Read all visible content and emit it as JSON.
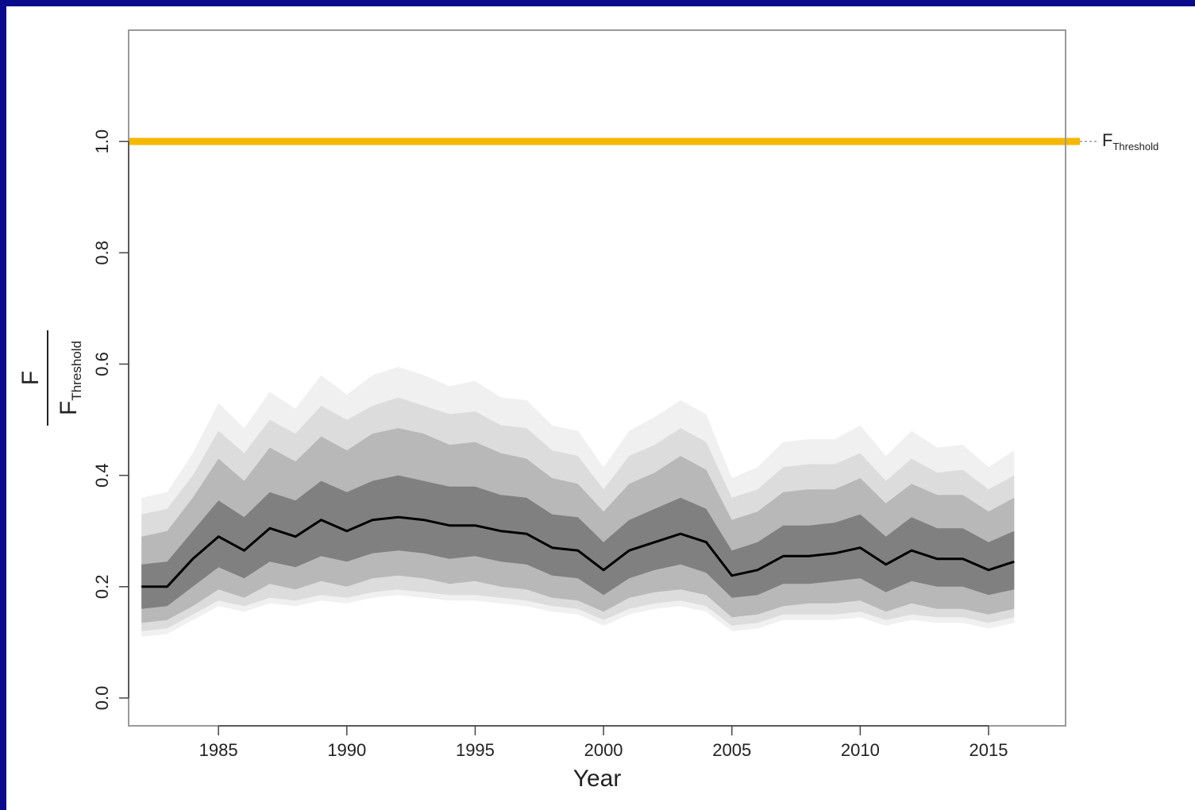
{
  "chart_data": {
    "type": "area",
    "xlabel": "Year",
    "ylabel": {
      "numerator": "F",
      "denominator_main": "F",
      "denominator_sub": "Threshold"
    },
    "xlim": [
      1981.5,
      2018
    ],
    "ylim": [
      -0.05,
      1.2
    ],
    "x_ticks": [
      1985,
      1990,
      1995,
      2000,
      2005,
      2010,
      2015
    ],
    "y_ticks": [
      0.0,
      0.2,
      0.4,
      0.6,
      0.8,
      1.0
    ],
    "y_tick_labels": [
      "0.0",
      "0.2",
      "0.4",
      "0.6",
      "0.8",
      "1.0"
    ],
    "reference_line": {
      "y": 1.0,
      "color": "#f5b800",
      "label_main": "F",
      "label_sub": "Threshold"
    },
    "x": [
      1982,
      1983,
      1984,
      1985,
      1986,
      1987,
      1988,
      1989,
      1990,
      1991,
      1992,
      1993,
      1994,
      1995,
      1996,
      1997,
      1998,
      1999,
      2000,
      2001,
      2002,
      2003,
      2004,
      2005,
      2006,
      2007,
      2008,
      2009,
      2010,
      2011,
      2012,
      2013,
      2014,
      2015,
      2016
    ],
    "series": [
      {
        "role": "median",
        "color": "#000000",
        "values": [
          0.2,
          0.2,
          0.25,
          0.29,
          0.265,
          0.305,
          0.29,
          0.32,
          0.3,
          0.32,
          0.325,
          0.32,
          0.31,
          0.31,
          0.3,
          0.295,
          0.27,
          0.265,
          0.23,
          0.265,
          0.28,
          0.295,
          0.28,
          0.22,
          0.23,
          0.255,
          0.255,
          0.26,
          0.27,
          0.24,
          0.265,
          0.25,
          0.25,
          0.23,
          0.245
        ]
      }
    ],
    "bands": [
      {
        "level": "outer",
        "color": "#f0f0f0",
        "lower": [
          0.11,
          0.115,
          0.14,
          0.165,
          0.155,
          0.17,
          0.165,
          0.175,
          0.17,
          0.18,
          0.185,
          0.18,
          0.175,
          0.175,
          0.17,
          0.165,
          0.155,
          0.15,
          0.13,
          0.15,
          0.16,
          0.165,
          0.155,
          0.12,
          0.125,
          0.14,
          0.14,
          0.14,
          0.145,
          0.13,
          0.14,
          0.135,
          0.135,
          0.125,
          0.135
        ],
        "upper": [
          0.36,
          0.37,
          0.44,
          0.53,
          0.485,
          0.55,
          0.52,
          0.58,
          0.545,
          0.58,
          0.595,
          0.58,
          0.56,
          0.57,
          0.54,
          0.535,
          0.49,
          0.48,
          0.415,
          0.48,
          0.505,
          0.535,
          0.51,
          0.395,
          0.415,
          0.46,
          0.465,
          0.465,
          0.49,
          0.435,
          0.48,
          0.45,
          0.455,
          0.415,
          0.445
        ]
      },
      {
        "level": "mid-outer",
        "color": "#dcdcdc",
        "lower": [
          0.12,
          0.125,
          0.15,
          0.175,
          0.165,
          0.18,
          0.175,
          0.185,
          0.18,
          0.19,
          0.195,
          0.19,
          0.185,
          0.185,
          0.18,
          0.175,
          0.165,
          0.16,
          0.14,
          0.16,
          0.17,
          0.175,
          0.165,
          0.13,
          0.135,
          0.15,
          0.15,
          0.15,
          0.155,
          0.14,
          0.15,
          0.145,
          0.145,
          0.135,
          0.145
        ],
        "upper": [
          0.33,
          0.34,
          0.4,
          0.48,
          0.44,
          0.5,
          0.475,
          0.525,
          0.5,
          0.525,
          0.54,
          0.525,
          0.51,
          0.515,
          0.49,
          0.485,
          0.445,
          0.435,
          0.375,
          0.435,
          0.455,
          0.485,
          0.46,
          0.36,
          0.375,
          0.415,
          0.42,
          0.42,
          0.44,
          0.39,
          0.43,
          0.405,
          0.41,
          0.375,
          0.4
        ]
      },
      {
        "level": "mid-inner",
        "color": "#b8b8b8",
        "lower": [
          0.135,
          0.14,
          0.165,
          0.195,
          0.18,
          0.205,
          0.195,
          0.21,
          0.2,
          0.215,
          0.22,
          0.215,
          0.205,
          0.21,
          0.2,
          0.195,
          0.18,
          0.175,
          0.155,
          0.18,
          0.19,
          0.195,
          0.185,
          0.145,
          0.15,
          0.165,
          0.17,
          0.17,
          0.175,
          0.155,
          0.17,
          0.16,
          0.16,
          0.15,
          0.16
        ],
        "upper": [
          0.29,
          0.3,
          0.36,
          0.43,
          0.39,
          0.45,
          0.425,
          0.47,
          0.445,
          0.475,
          0.485,
          0.475,
          0.455,
          0.46,
          0.44,
          0.43,
          0.395,
          0.385,
          0.335,
          0.385,
          0.405,
          0.435,
          0.41,
          0.32,
          0.335,
          0.37,
          0.375,
          0.375,
          0.395,
          0.35,
          0.385,
          0.365,
          0.365,
          0.335,
          0.36
        ]
      },
      {
        "level": "inner",
        "color": "#808080",
        "lower": [
          0.16,
          0.165,
          0.2,
          0.235,
          0.215,
          0.245,
          0.235,
          0.255,
          0.245,
          0.26,
          0.265,
          0.26,
          0.25,
          0.255,
          0.245,
          0.24,
          0.22,
          0.215,
          0.185,
          0.215,
          0.23,
          0.24,
          0.225,
          0.18,
          0.185,
          0.205,
          0.205,
          0.21,
          0.215,
          0.19,
          0.21,
          0.2,
          0.2,
          0.185,
          0.195
        ],
        "upper": [
          0.24,
          0.245,
          0.3,
          0.355,
          0.325,
          0.37,
          0.355,
          0.39,
          0.37,
          0.39,
          0.4,
          0.39,
          0.38,
          0.38,
          0.365,
          0.36,
          0.33,
          0.325,
          0.28,
          0.32,
          0.34,
          0.36,
          0.34,
          0.265,
          0.28,
          0.31,
          0.31,
          0.315,
          0.33,
          0.29,
          0.325,
          0.305,
          0.305,
          0.28,
          0.3
        ]
      }
    ]
  }
}
